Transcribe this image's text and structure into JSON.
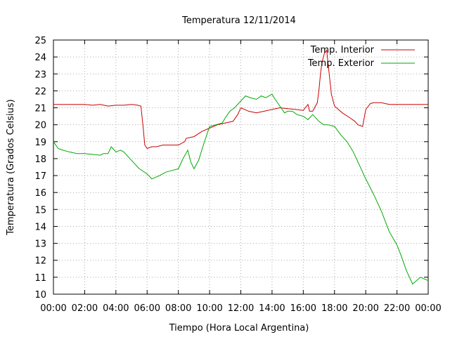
{
  "chart_data": {
    "type": "line",
    "title": "Temperatura 12/11/2014",
    "xlabel": "Tiempo (Hora Local Argentina)",
    "ylabel": "Temperatura (Grados Celsius)",
    "xlim": [
      0,
      24
    ],
    "ylim": [
      10,
      25
    ],
    "grid": true,
    "legend_position": "top-right",
    "x_tick_labels": [
      "00:00",
      "02:00",
      "04:00",
      "06:00",
      "08:00",
      "10:00",
      "12:00",
      "14:00",
      "16:00",
      "18:00",
      "20:00",
      "22:00",
      "00:00"
    ],
    "y_tick_labels": [
      "10",
      "11",
      "12",
      "13",
      "14",
      "15",
      "16",
      "17",
      "18",
      "19",
      "20",
      "21",
      "22",
      "23",
      "24",
      "25"
    ],
    "series": [
      {
        "name": "Temp. Interior",
        "color": "#cc0000",
        "x": [
          0,
          1,
          2,
          2.5,
          3,
          3.5,
          4,
          4.5,
          5,
          5.4,
          5.6,
          5.75,
          5.85,
          6.0,
          6.3,
          6.6,
          7.0,
          7.5,
          8.0,
          8.4,
          8.5,
          9.0,
          9.5,
          10.0,
          10.5,
          11.0,
          11.5,
          11.8,
          12.0,
          12.5,
          13.0,
          13.5,
          14.0,
          14.5,
          15.0,
          15.5,
          16.0,
          16.3,
          16.4,
          16.6,
          16.9,
          17.0,
          17.1,
          17.2,
          17.35,
          17.5,
          17.6,
          17.8,
          18.0,
          18.5,
          19.0,
          19.3,
          19.5,
          19.8,
          20.0,
          20.3,
          20.5,
          21.0,
          21.5,
          22.0,
          23.0,
          24.0
        ],
        "values": [
          21.2,
          21.2,
          21.2,
          21.15,
          21.2,
          21.1,
          21.15,
          21.15,
          21.2,
          21.15,
          21.1,
          19.8,
          18.8,
          18.6,
          18.7,
          18.7,
          18.8,
          18.8,
          18.8,
          19.0,
          19.2,
          19.3,
          19.6,
          19.8,
          20.0,
          20.1,
          20.2,
          20.6,
          21.0,
          20.8,
          20.7,
          20.8,
          20.9,
          21.0,
          20.95,
          20.9,
          20.85,
          21.2,
          20.8,
          20.8,
          21.3,
          22.0,
          23.0,
          23.7,
          24.2,
          24.4,
          23.5,
          21.8,
          21.1,
          20.7,
          20.4,
          20.2,
          20.0,
          19.9,
          20.9,
          21.25,
          21.3,
          21.3,
          21.2,
          21.2,
          21.2,
          21.2
        ]
      },
      {
        "name": "Temp. Exterior",
        "color": "#00aa00",
        "x": [
          0,
          0.3,
          0.6,
          1,
          1.5,
          2,
          2.5,
          3,
          3.2,
          3.5,
          3.7,
          4.0,
          4.3,
          4.5,
          5.0,
          5.5,
          6.0,
          6.3,
          6.8,
          7.2,
          7.6,
          8.0,
          8.3,
          8.6,
          8.8,
          9.0,
          9.3,
          9.6,
          10.0,
          10.4,
          10.8,
          11.0,
          11.3,
          11.6,
          12.0,
          12.3,
          12.6,
          13.0,
          13.3,
          13.6,
          14.0,
          14.2,
          14.5,
          14.8,
          15.0,
          15.3,
          15.6,
          16.0,
          16.3,
          16.6,
          17.0,
          17.3,
          17.6,
          18.0,
          18.4,
          18.8,
          19.2,
          19.6,
          20.0,
          20.5,
          21.0,
          21.5,
          22.0,
          22.3,
          22.6,
          23.0,
          23.5,
          24.0
        ],
        "values": [
          19.0,
          18.6,
          18.5,
          18.4,
          18.3,
          18.3,
          18.25,
          18.2,
          18.3,
          18.3,
          18.7,
          18.4,
          18.5,
          18.4,
          17.9,
          17.4,
          17.1,
          16.8,
          17.0,
          17.2,
          17.3,
          17.4,
          18.0,
          18.5,
          17.8,
          17.4,
          17.9,
          18.8,
          19.9,
          20.0,
          20.1,
          20.4,
          20.8,
          21.0,
          21.4,
          21.7,
          21.6,
          21.5,
          21.7,
          21.6,
          21.8,
          21.5,
          21.1,
          20.7,
          20.8,
          20.8,
          20.6,
          20.5,
          20.3,
          20.6,
          20.2,
          20.0,
          20.0,
          19.9,
          19.4,
          19.0,
          18.4,
          17.6,
          16.8,
          15.9,
          14.9,
          13.7,
          12.9,
          12.2,
          11.4,
          10.6,
          11.0,
          10.8
        ]
      }
    ]
  }
}
